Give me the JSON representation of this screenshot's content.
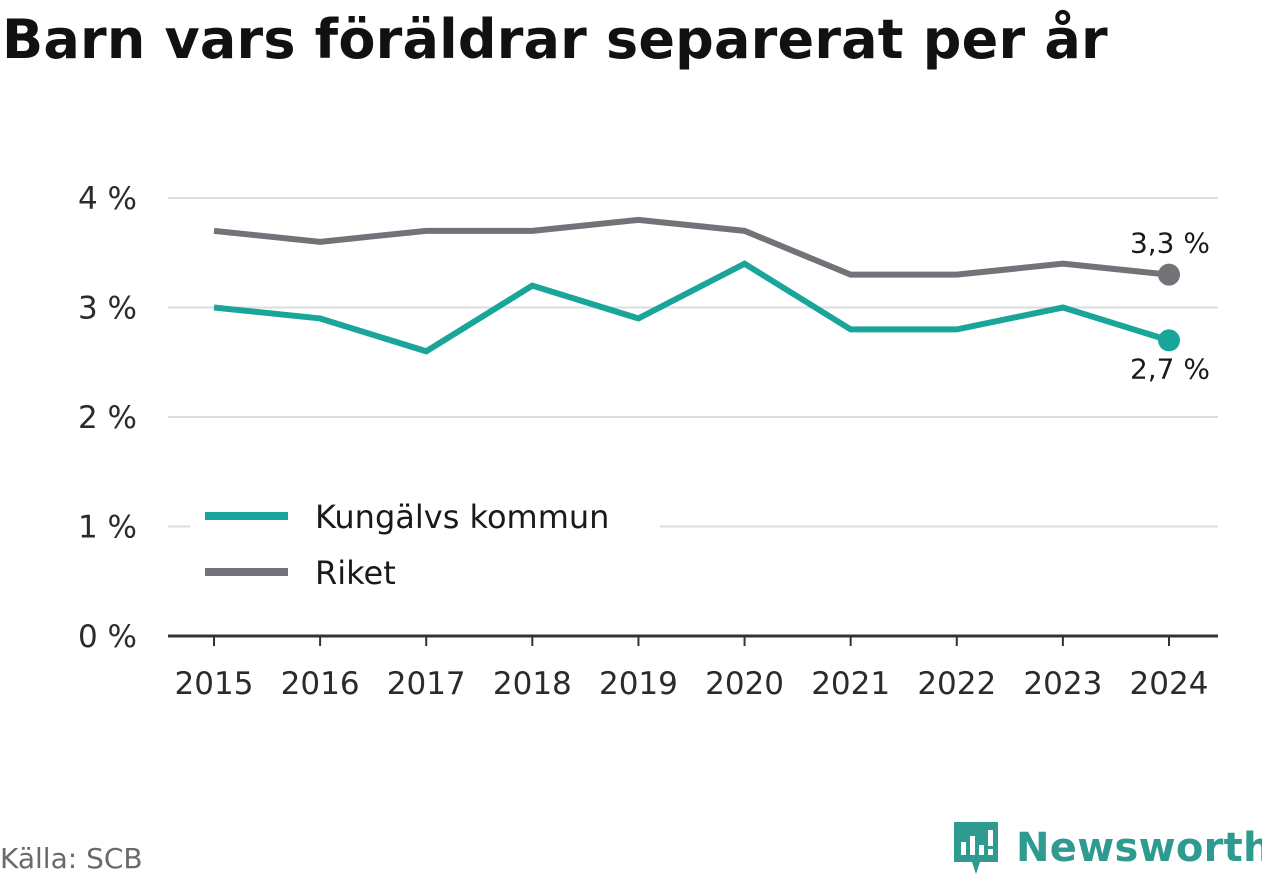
{
  "chart_data": {
    "type": "line",
    "title": "Barn vars föräldrar separerat per år",
    "xlabel": "",
    "ylabel": "",
    "x": [
      "2015",
      "2016",
      "2017",
      "2018",
      "2019",
      "2020",
      "2021",
      "2022",
      "2023",
      "2024"
    ],
    "ylim": [
      0,
      4
    ],
    "yticks": [
      0,
      1,
      2,
      3,
      4
    ],
    "ytick_labels": [
      "0 %",
      "1 %",
      "2 %",
      "3 %",
      "4 %"
    ],
    "grid": true,
    "legend_position": "bottom-left",
    "series": [
      {
        "name": "Kungälvs kommun",
        "color": "#1aa59a",
        "values": [
          3.0,
          2.9,
          2.6,
          3.2,
          2.9,
          3.4,
          2.8,
          2.8,
          3.0,
          2.7
        ],
        "end_label": "2,7 %"
      },
      {
        "name": "Riket",
        "color": "#737278",
        "values": [
          3.7,
          3.6,
          3.7,
          3.7,
          3.8,
          3.7,
          3.3,
          3.3,
          3.4,
          3.3
        ],
        "end_label": "3,3 %"
      }
    ]
  },
  "source": "Källa: SCB",
  "brand": {
    "name": "Newsworthy",
    "icon": "newsworthy-logo-icon",
    "color": "#2f9a90"
  }
}
